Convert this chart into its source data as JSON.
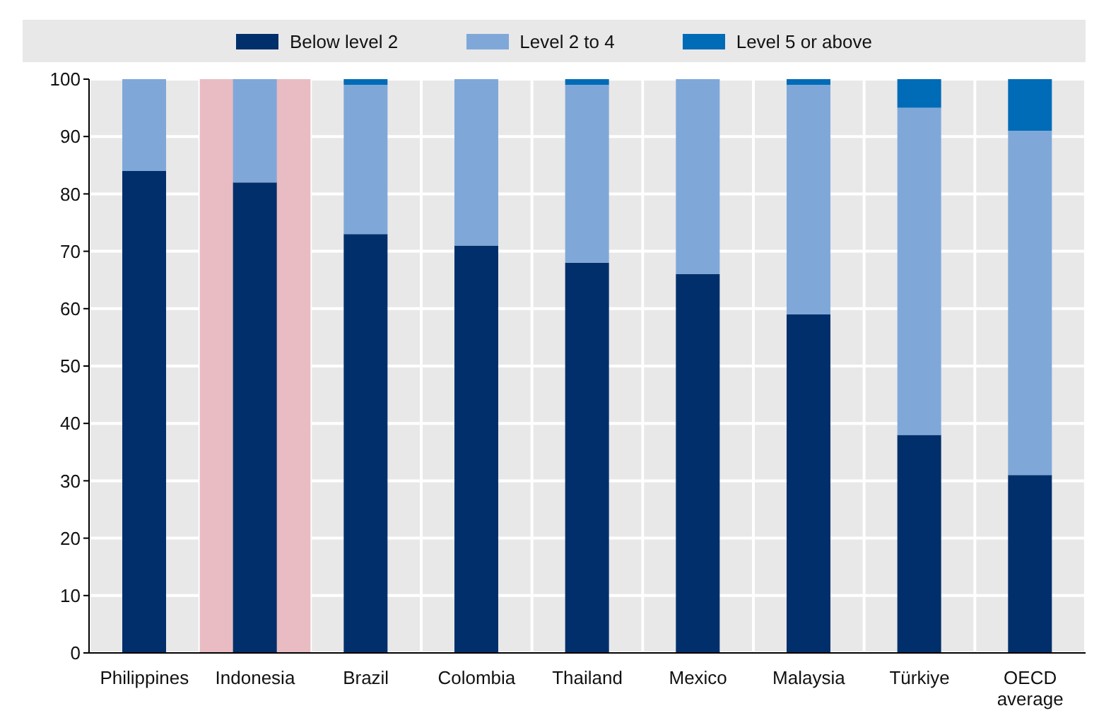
{
  "chart_data": {
    "type": "bar",
    "stacked": true,
    "categories": [
      "Philippines",
      "Indonesia",
      "Brazil",
      "Colombia",
      "Thailand",
      "Mexico",
      "Malaysia",
      "Türkiye",
      "OECD average"
    ],
    "series": [
      {
        "name": "Below level 2",
        "color": "#002f6c",
        "values": [
          84,
          82,
          73,
          71,
          68,
          66,
          59,
          38,
          31
        ]
      },
      {
        "name": "Level 2 to 4",
        "color": "#7fa8d9",
        "values": [
          16,
          18,
          26,
          29,
          31,
          34,
          40,
          57,
          60
        ]
      },
      {
        "name": "Level 5 or above",
        "color": "#006bb6",
        "values": [
          0,
          0,
          1,
          0,
          1,
          0,
          1,
          5,
          9
        ]
      }
    ],
    "ylim": [
      0,
      100
    ],
    "yticks": [
      0,
      10,
      20,
      30,
      40,
      50,
      60,
      70,
      80,
      90,
      100
    ],
    "grid": true,
    "legend": "top",
    "bands": [
      {
        "axis": "x",
        "from": "Indonesia",
        "to": "Indonesia",
        "color": "#e8bcc2"
      }
    ]
  }
}
